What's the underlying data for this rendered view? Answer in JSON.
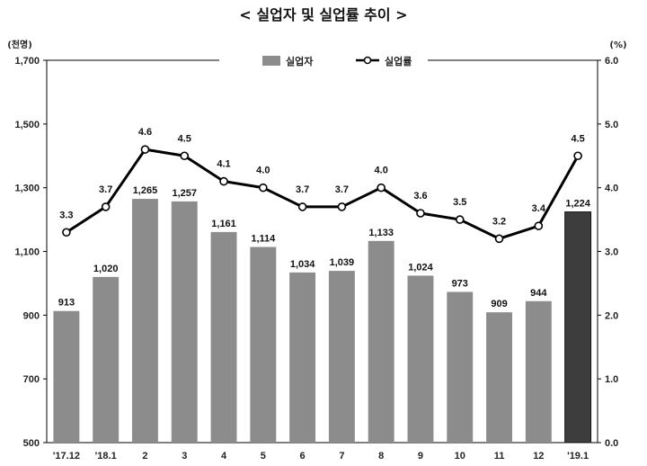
{
  "chart_data": {
    "type": "bar",
    "title": "< 실업자 및 실업률 추이 >",
    "y_left_unit": "(천명)",
    "y_right_unit": "(%)",
    "categories": [
      "'17.12",
      "'18.1",
      "2",
      "3",
      "4",
      "5",
      "6",
      "7",
      "8",
      "9",
      "10",
      "11",
      "12",
      "'19.1"
    ],
    "y_left_ticks": [
      "1,700",
      "1,500",
      "1,300",
      "1,100",
      "900",
      "700",
      "500"
    ],
    "y_right_ticks": [
      "6.0",
      "5.0",
      "4.0",
      "3.0",
      "2.0",
      "1.0",
      "0.0"
    ],
    "ylim_left": [
      500,
      1700
    ],
    "ylim_right": [
      0,
      6
    ],
    "series": [
      {
        "name": "실업자",
        "kind": "bar",
        "axis": "left",
        "values": [
          913,
          1020,
          1265,
          1257,
          1161,
          1114,
          1034,
          1039,
          1133,
          1024,
          973,
          909,
          944,
          1224
        ],
        "labels": [
          "913",
          "1,020",
          "1,265",
          "1,257",
          "1,161",
          "1,114",
          "1,034",
          "1,039",
          "1,133",
          "1,024",
          "973",
          "909",
          "944",
          "1,224"
        ],
        "color": "#8c8c8c",
        "highlight_color": "#3d3d3d"
      },
      {
        "name": "실업률",
        "kind": "line",
        "axis": "right",
        "values": [
          3.3,
          3.7,
          4.6,
          4.5,
          4.1,
          4.0,
          3.7,
          3.7,
          4.0,
          3.6,
          3.5,
          3.2,
          3.4,
          4.5
        ],
        "labels": [
          "3.3",
          "3.7",
          "4.6",
          "4.5",
          "4.1",
          "4.0",
          "3.7",
          "3.7",
          "4.0",
          "3.6",
          "3.5",
          "3.2",
          "3.4",
          "4.5"
        ],
        "color": "#000000"
      }
    ],
    "legend": {
      "placement": "top-center"
    },
    "grid": false
  }
}
